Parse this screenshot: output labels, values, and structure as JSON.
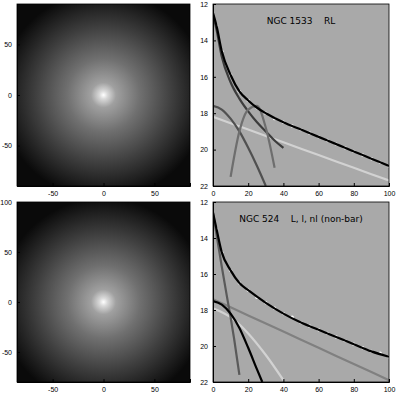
{
  "chart_data": [
    {
      "type": "image",
      "xlim": [
        -85,
        85
      ],
      "ylim": [
        -90,
        90
      ],
      "xticks": [
        -50,
        0,
        50
      ],
      "yticks": [
        -50,
        0,
        50
      ]
    },
    {
      "type": "line",
      "title": "NGC 1533    RL",
      "xlim": [
        0,
        100
      ],
      "ylim": [
        22,
        12
      ],
      "xticks": [
        0,
        20,
        40,
        60,
        80,
        100
      ],
      "yticks": [
        12,
        14,
        16,
        18,
        20,
        22
      ],
      "series": [
        {
          "type": "scatter",
          "marker": "circle",
          "color": "#ffffff",
          "x": [
            2,
            5,
            10,
            15,
            20,
            25,
            30,
            35,
            40,
            45,
            50,
            55,
            60,
            65,
            70,
            75,
            80,
            85,
            90,
            95,
            100
          ],
          "values": [
            13.2,
            14.6,
            15.9,
            16.8,
            17.3,
            17.7,
            18.0,
            18.3,
            18.5,
            18.7,
            18.9,
            19.1,
            19.3,
            19.5,
            19.7,
            19.9,
            20.1,
            20.3,
            20.5,
            20.7,
            20.9
          ]
        },
        {
          "type": "line",
          "color": "#d2d2d2",
          "x": [
            0,
            20,
            40,
            60,
            80,
            100
          ],
          "values": [
            18.2,
            18.9,
            19.6,
            20.3,
            21.0,
            21.7
          ]
        },
        {
          "type": "line",
          "color": "#3c3c3c",
          "x": [
            0,
            2,
            5,
            10,
            15,
            20,
            25,
            30,
            35,
            40
          ],
          "values": [
            12.6,
            13.4,
            14.9,
            16.3,
            17.2,
            17.9,
            18.5,
            19.0,
            19.5,
            19.9
          ]
        },
        {
          "type": "line",
          "color": "#505050",
          "x": [
            0,
            5,
            10,
            15,
            20,
            25,
            30
          ],
          "values": [
            17.6,
            17.8,
            18.3,
            19.0,
            19.9,
            20.9,
            22.0
          ]
        },
        {
          "type": "line",
          "color": "#6e6e6e",
          "x": [
            10,
            15,
            20,
            25,
            30,
            35
          ],
          "values": [
            21.5,
            19.0,
            17.8,
            17.6,
            18.8,
            21.0
          ]
        },
        {
          "type": "line",
          "color": "#000000",
          "x": [
            0,
            2,
            5,
            10,
            15,
            20,
            25,
            30,
            40,
            50,
            60,
            70,
            80,
            90,
            100
          ],
          "values": [
            12.5,
            13.2,
            14.6,
            15.9,
            16.8,
            17.3,
            17.7,
            18.0,
            18.5,
            18.9,
            19.3,
            19.7,
            20.1,
            20.5,
            20.9
          ]
        }
      ]
    },
    {
      "type": "image",
      "xlim": [
        -85,
        85
      ],
      "ylim": [
        -80,
        100
      ],
      "xticks": [
        -50,
        0,
        50
      ],
      "yticks": [
        -50,
        0,
        50,
        100
      ]
    },
    {
      "type": "line",
      "title": "NGC 524    L, l, nl (non-bar)",
      "xlim": [
        0,
        100
      ],
      "ylim": [
        22,
        12
      ],
      "xticks": [
        0,
        20,
        40,
        60,
        80,
        100
      ],
      "yticks": [
        12,
        14,
        16,
        18,
        20,
        22
      ],
      "series": [
        {
          "type": "scatter",
          "marker": "circle",
          "color": "#ffffff",
          "x": [
            2,
            5,
            10,
            15,
            20,
            25,
            30,
            35,
            40,
            45,
            50,
            55,
            60,
            65,
            70,
            75,
            80,
            85,
            90,
            95,
            100
          ],
          "values": [
            13.5,
            14.8,
            15.8,
            16.5,
            16.9,
            17.3,
            17.6,
            17.9,
            18.2,
            18.4,
            18.7,
            18.9,
            19.1,
            19.3,
            19.5,
            19.7,
            19.9,
            20.1,
            20.3,
            20.4,
            20.6
          ]
        },
        {
          "type": "line",
          "color": "#808080",
          "x": [
            0,
            20,
            40,
            60,
            80,
            100
          ],
          "values": [
            17.4,
            18.3,
            19.2,
            20.1,
            21.0,
            21.9
          ]
        },
        {
          "type": "line",
          "color": "#d2d2d2",
          "x": [
            0,
            10,
            20,
            30,
            40
          ],
          "values": [
            17.9,
            18.4,
            19.3,
            20.5,
            21.9
          ]
        },
        {
          "type": "line",
          "color": "#5a5a5a",
          "x": [
            0,
            2,
            5,
            8,
            10,
            12,
            15
          ],
          "values": [
            12.6,
            13.8,
            15.6,
            17.3,
            18.4,
            19.6,
            21.6
          ]
        },
        {
          "type": "line",
          "color": "#000000",
          "x": [
            0,
            5,
            10,
            15,
            20,
            25,
            28
          ],
          "values": [
            17.5,
            17.7,
            18.2,
            19.0,
            20.1,
            21.3,
            22.0
          ]
        },
        {
          "type": "line",
          "color": "#000000",
          "x": [
            0,
            2,
            5,
            10,
            15,
            20,
            30,
            40,
            50,
            60,
            70,
            80,
            90,
            100
          ],
          "values": [
            12.6,
            13.5,
            14.8,
            15.8,
            16.5,
            16.9,
            17.6,
            18.2,
            18.7,
            19.1,
            19.5,
            19.9,
            20.3,
            20.6
          ]
        }
      ]
    }
  ]
}
